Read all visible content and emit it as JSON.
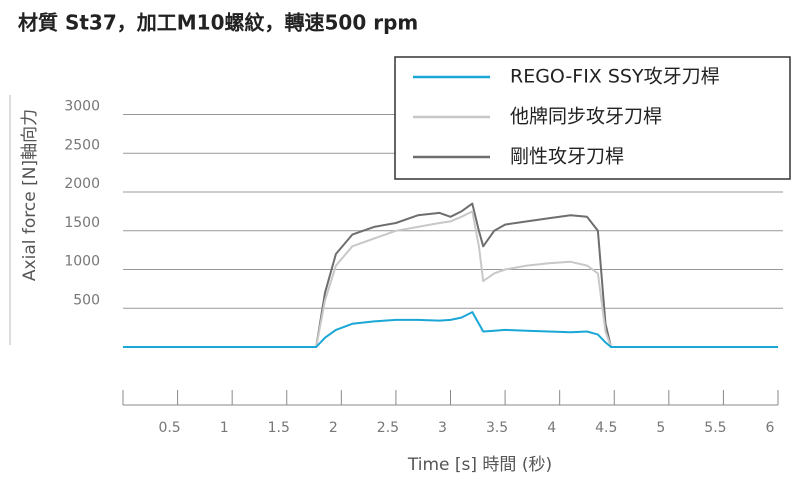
{
  "chart_data": {
    "type": "line",
    "title": "材質 St37，加工M10螺紋，轉速500 rpm",
    "y_label": "Axial force [N]軸向力",
    "x_label": "Time [s] 時間 (秒)",
    "x": [
      0,
      0.5,
      1,
      1.5,
      1.77,
      1.85,
      1.95,
      2.1,
      2.3,
      2.5,
      2.7,
      2.9,
      3.0,
      3.1,
      3.2,
      3.26,
      3.3,
      3.4,
      3.5,
      3.7,
      3.9,
      4.1,
      4.25,
      4.35,
      4.42,
      4.47,
      5,
      5.5,
      6
    ],
    "series": [
      {
        "name": "REGO-FIX SSY攻牙刀桿",
        "color": "#1aa7d6",
        "values": [
          0,
          0,
          0,
          0,
          0,
          120,
          220,
          300,
          330,
          350,
          350,
          340,
          350,
          380,
          450,
          300,
          200,
          210,
          220,
          210,
          200,
          190,
          200,
          160,
          60,
          0,
          0,
          0,
          0
        ]
      },
      {
        "name": "他牌同步攻牙刀桿",
        "color": "#c8c8c8",
        "values": [
          0,
          0,
          0,
          0,
          0,
          600,
          1050,
          1300,
          1400,
          1500,
          1550,
          1600,
          1620,
          1680,
          1750,
          1300,
          850,
          950,
          1000,
          1050,
          1080,
          1100,
          1050,
          950,
          200,
          0,
          0,
          0,
          0
        ]
      },
      {
        "name": "剛性攻牙刀桿",
        "color": "#6e6e6e",
        "values": [
          0,
          0,
          0,
          0,
          0,
          700,
          1200,
          1450,
          1550,
          1600,
          1700,
          1730,
          1680,
          1750,
          1850,
          1500,
          1300,
          1500,
          1580,
          1620,
          1660,
          1700,
          1680,
          1500,
          300,
          0,
          0,
          0,
          0
        ]
      }
    ],
    "xlim": [
      0,
      6
    ],
    "xticks": [
      0.5,
      1,
      1.5,
      2,
      2.5,
      3,
      3.5,
      4,
      4.5,
      5,
      5.5,
      6
    ],
    "ylim": [
      0,
      3200
    ],
    "yticks": [
      500,
      1000,
      1500,
      2000,
      2500,
      3000
    ],
    "grid": true,
    "legend": "top-right"
  }
}
